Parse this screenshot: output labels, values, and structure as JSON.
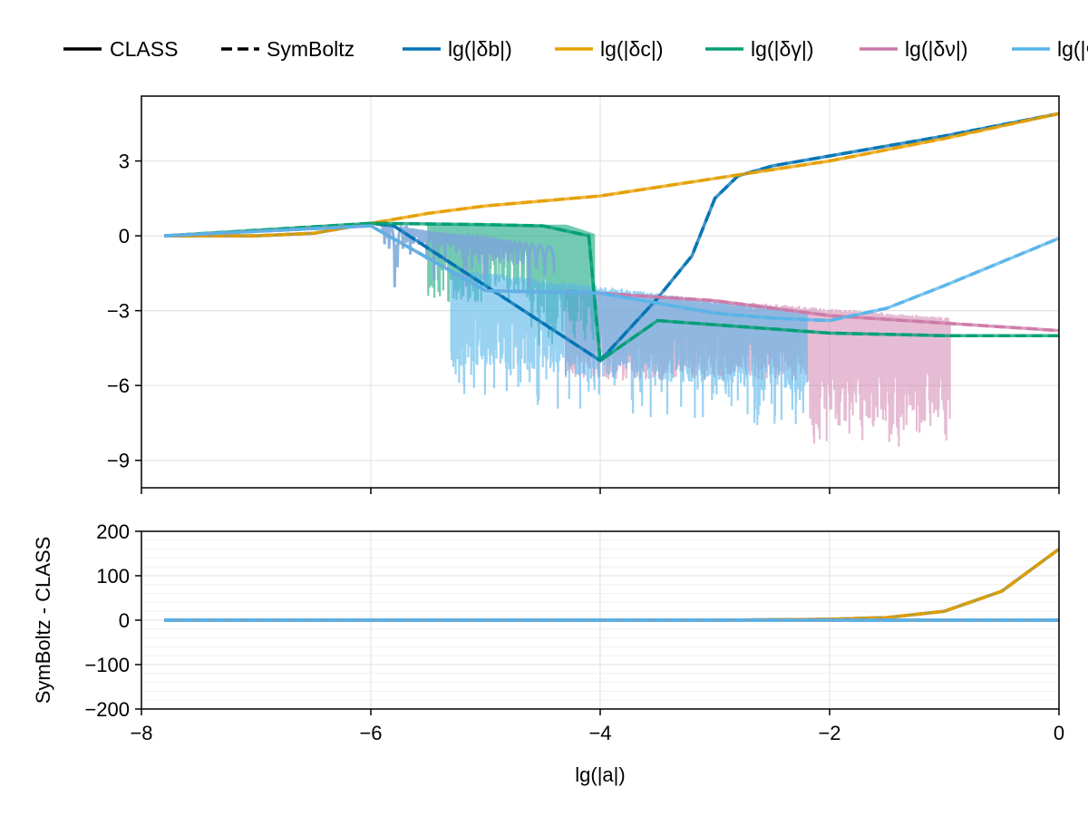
{
  "chart_data": [
    {
      "type": "line",
      "panel": "top",
      "xlabel": "",
      "ylabel": "",
      "xlim": [
        -8,
        0
      ],
      "ylim": [
        -10.1,
        5.6
      ],
      "yticks": [
        3,
        0,
        -3,
        -6,
        -9
      ],
      "ytick_labels": [
        "3",
        "0",
        "−3",
        "−6",
        "−9"
      ],
      "grid": true,
      "legend": {
        "position": "top",
        "style_entries": [
          {
            "label": "CLASS",
            "style": "solid",
            "color": "#000000"
          },
          {
            "label": "SymBoltz",
            "style": "dashed",
            "color": "#000000"
          }
        ]
      },
      "series": [
        {
          "name": "lg(|δb|)",
          "color": "#0072b2",
          "x": [
            -7.8,
            -7,
            -6.5,
            -6,
            -5.8,
            -4,
            -3.5,
            -3.2,
            -3.0,
            -2.8,
            -2.5,
            -2,
            -1,
            0
          ],
          "values": [
            0,
            0,
            0.1,
            0.5,
            0.4,
            -5,
            -2.5,
            -0.8,
            1.5,
            2.4,
            2.8,
            3.2,
            4.0,
            4.9
          ]
        },
        {
          "name": "lg(|δc|)",
          "color": "#e69f00",
          "x": [
            -7.8,
            -7,
            -6.5,
            -6,
            -5.5,
            -5,
            -4,
            -3,
            -2,
            -1,
            0
          ],
          "values": [
            0,
            0,
            0.1,
            0.5,
            0.9,
            1.2,
            1.6,
            2.3,
            3.0,
            3.9,
            4.9
          ]
        },
        {
          "name": "lg(|δγ|)",
          "color": "#009e73",
          "x": [
            -7.8,
            -6,
            -5.0,
            -4.5,
            -4.1,
            -4.0,
            -3.5,
            -2,
            -1,
            0
          ],
          "values": [
            0,
            0.5,
            0.45,
            0.4,
            0,
            -5,
            -3.4,
            -3.9,
            -4.0,
            -4.0
          ]
        },
        {
          "name": "lg(|δν|)",
          "color": "#cc79a7",
          "x": [
            -7.8,
            -6,
            -5,
            -4,
            -3,
            -2,
            -1,
            0
          ],
          "values": [
            0,
            0.4,
            -2.2,
            -2.3,
            -2.6,
            -3.2,
            -3.5,
            -3.8
          ]
        },
        {
          "name": "lg(|Φ|)",
          "color": "#56b4e9",
          "x": [
            -7.8,
            -6,
            -5,
            -4,
            -3.5,
            -3,
            -2.5,
            -2,
            -1.5,
            -1,
            0
          ],
          "values": [
            0,
            0.4,
            -2.2,
            -2.3,
            -2.7,
            -3.1,
            -3.3,
            -3.4,
            -2.9,
            -2.0,
            -0.1
          ]
        }
      ]
    },
    {
      "type": "line",
      "panel": "bottom",
      "xlabel": "lg(|a|)",
      "ylabel": "SymBoltz - CLASS",
      "xlim": [
        -8,
        0
      ],
      "ylim": [
        -200,
        200
      ],
      "xticks": [
        -8,
        -6,
        -4,
        -2,
        0
      ],
      "xtick_labels": [
        "−8",
        "−6",
        "−4",
        "−2",
        "0"
      ],
      "yticks": [
        200,
        100,
        0,
        -100,
        -200
      ],
      "ytick_labels": [
        "200",
        "100",
        "0",
        "−100",
        "−200"
      ],
      "grid": true,
      "series": [
        {
          "name": "δb",
          "color": "#0072b2",
          "x": [
            -7.8,
            -3,
            -2,
            -1.5,
            -1,
            -0.5,
            0
          ],
          "values": [
            0,
            0,
            2,
            6,
            20,
            65,
            160
          ]
        },
        {
          "name": "δc",
          "color": "#e69f00",
          "x": [
            -7.8,
            -3,
            -2,
            -1.5,
            -1,
            -0.5,
            0
          ],
          "values": [
            0,
            0,
            2,
            6,
            20,
            65,
            160
          ]
        },
        {
          "name": "δγ",
          "color": "#009e73",
          "x": [
            -7.8,
            0
          ],
          "values": [
            0,
            0
          ]
        },
        {
          "name": "δν",
          "color": "#cc79a7",
          "x": [
            -7.8,
            0
          ],
          "values": [
            0,
            0
          ]
        },
        {
          "name": "Φ",
          "color": "#56b4e9",
          "x": [
            -7.8,
            0
          ],
          "values": [
            0,
            0
          ]
        }
      ]
    }
  ]
}
